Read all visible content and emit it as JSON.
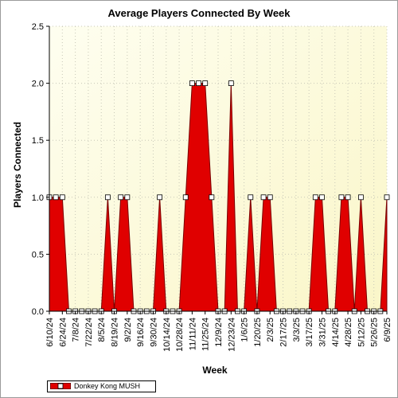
{
  "chart_data": {
    "type": "area",
    "title": "Average Players Connected By Week",
    "xlabel": "Week",
    "ylabel": "Players Connected",
    "ylim": [
      0,
      2.5
    ],
    "yticks": [
      "0.0",
      "0.5",
      "1.0",
      "1.5",
      "2.0",
      "2.5"
    ],
    "x_tick_labels": [
      "6/10/24",
      "6/24/24",
      "7/8/24",
      "7/22/24",
      "8/5/24",
      "8/19/24",
      "9/2/24",
      "9/16/24",
      "9/30/24",
      "10/14/24",
      "10/28/24",
      "11/11/24",
      "11/25/24",
      "12/9/24",
      "12/23/24",
      "1/6/25",
      "1/20/25",
      "2/3/25",
      "2/17/25",
      "3/3/25",
      "3/17/25",
      "3/31/25",
      "4/14/25",
      "4/28/25",
      "5/12/25",
      "5/26/25",
      "6/9/25"
    ],
    "x": [
      "6/10/24",
      "6/17/24",
      "6/24/24",
      "7/1/24",
      "7/8/24",
      "7/15/24",
      "7/22/24",
      "7/29/24",
      "8/5/24",
      "8/12/24",
      "8/19/24",
      "8/26/24",
      "9/2/24",
      "9/9/24",
      "9/16/24",
      "9/23/24",
      "9/30/24",
      "10/7/24",
      "10/14/24",
      "10/21/24",
      "10/28/24",
      "11/4/24",
      "11/11/24",
      "11/18/24",
      "11/25/24",
      "12/2/24",
      "12/9/24",
      "12/16/24",
      "12/23/24",
      "12/30/24",
      "1/6/25",
      "1/13/25",
      "1/20/25",
      "1/27/25",
      "2/3/25",
      "2/10/25",
      "2/17/25",
      "2/24/25",
      "3/3/25",
      "3/10/25",
      "3/17/25",
      "3/24/25",
      "3/31/25",
      "4/7/25",
      "4/14/25",
      "4/21/25",
      "4/28/25",
      "5/5/25",
      "5/12/25",
      "5/19/25",
      "5/26/25",
      "6/2/25",
      "6/9/25"
    ],
    "series": [
      {
        "name": "Donkey Kong MUSH",
        "color": "#e00000",
        "values": [
          1,
          1,
          1,
          0,
          0,
          0,
          0,
          0,
          0,
          1,
          0,
          1,
          1,
          0,
          0,
          0,
          0,
          1,
          0,
          0,
          0,
          1,
          2,
          2,
          2,
          1,
          0,
          0,
          2,
          0,
          0,
          1,
          0,
          1,
          1,
          0,
          0,
          0,
          0,
          0,
          0,
          1,
          1,
          0,
          0,
          1,
          1,
          0,
          1,
          0,
          0,
          0,
          1
        ]
      }
    ],
    "grid": true,
    "legend_position": "bottom-left"
  }
}
